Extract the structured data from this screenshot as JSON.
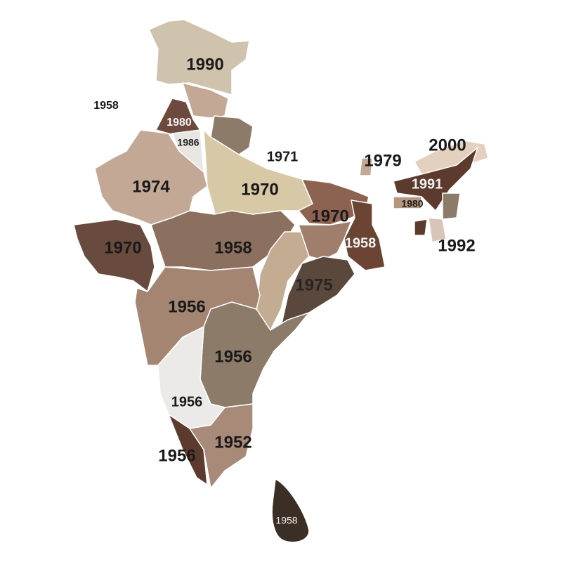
{
  "labels": [
    "1990",
    "1958",
    "1980",
    "1986",
    "1971",
    "1970",
    "1974",
    "1979",
    "2000",
    "1991",
    "1980",
    "1970",
    "1958",
    "1992",
    "1970",
    "1958",
    "1975",
    "1956",
    "1956",
    "1956",
    "1952",
    "1956",
    "1958"
  ]
}
